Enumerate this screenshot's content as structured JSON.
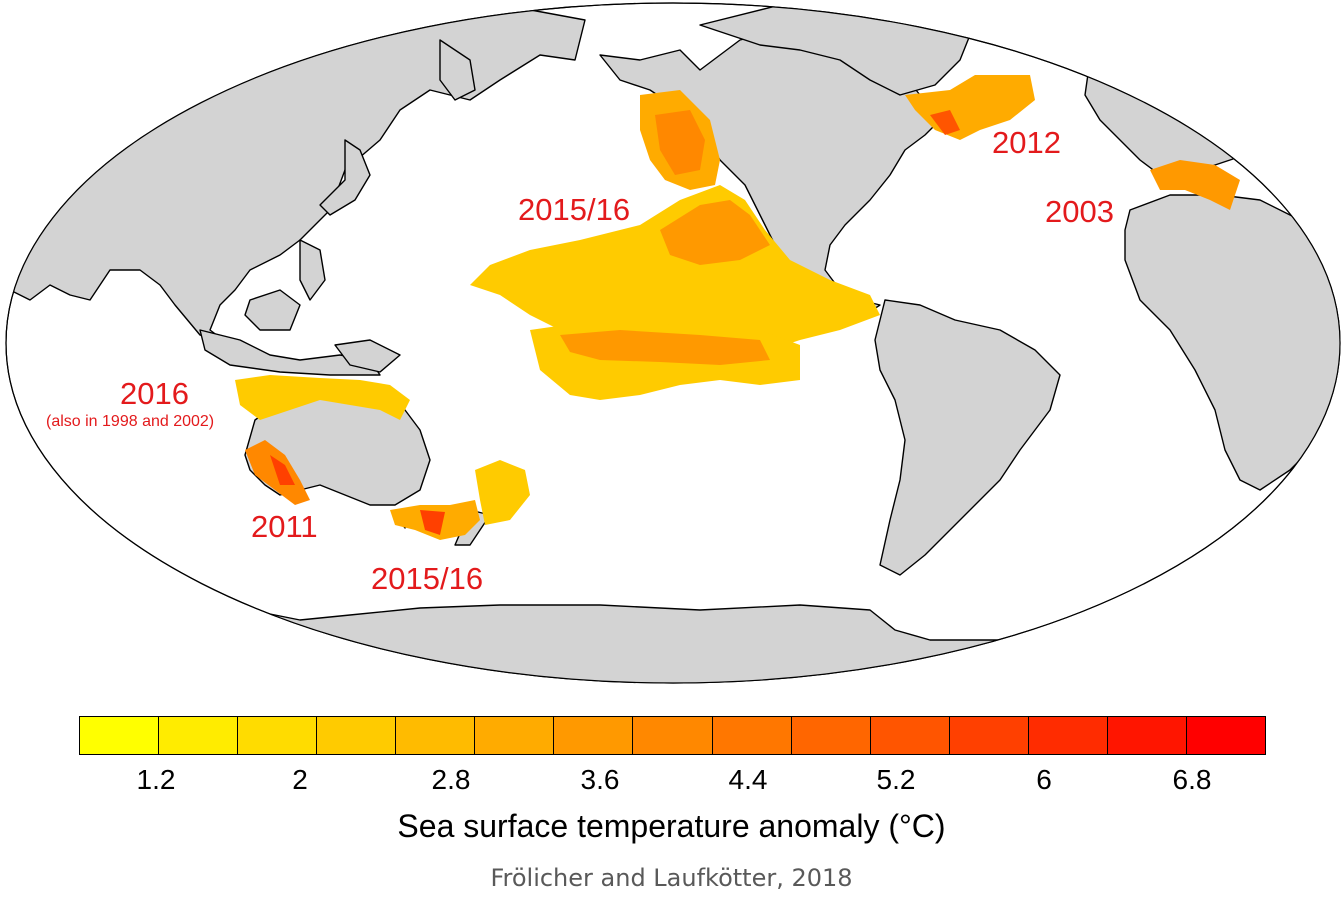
{
  "map": {
    "projection": "Robinson (Pacific-centered)",
    "land_color": "#d3d3d3",
    "ocean_color": "#ffffff",
    "events": [
      {
        "id": "ne-pacific",
        "label": "2015/16"
      },
      {
        "id": "nw-atlantic",
        "label": "2012"
      },
      {
        "id": "mediterranean",
        "label": "2003"
      },
      {
        "id": "n-australia",
        "label": "2016",
        "note": "(also in 1998 and 2002)"
      },
      {
        "id": "w-australia",
        "label": "2011"
      },
      {
        "id": "tasman",
        "label": "2015/16"
      }
    ]
  },
  "colorbar": {
    "colors": [
      "#ffff00",
      "#ffec00",
      "#ffdc00",
      "#ffcb00",
      "#ffbb00",
      "#ffab00",
      "#ff9900",
      "#ff8800",
      "#ff7700",
      "#ff6600",
      "#ff5500",
      "#ff4000",
      "#ff2c00",
      "#ff1500",
      "#ff0000"
    ],
    "tick_labels": [
      "1.2",
      "2",
      "2.8",
      "3.6",
      "4.4",
      "5.2",
      "6",
      "6.8"
    ],
    "title": "Sea surface temperature anomaly (°C)"
  },
  "credit": "Frölicher and Laufkötter, 2018"
}
